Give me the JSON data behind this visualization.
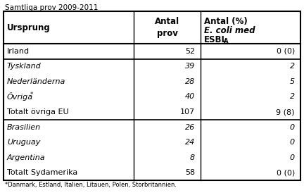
{
  "title": "Samtliga prov 2009-2011",
  "rows": [
    {
      "origin": "Irland",
      "italic": false,
      "antal_prov": "52",
      "antal_pct": "0 (0)",
      "section_bottom": true
    },
    {
      "origin": "Tyskland",
      "italic": true,
      "antal_prov": "39",
      "antal_pct": "2",
      "section_bottom": false
    },
    {
      "origin": "Nederländerna",
      "italic": true,
      "antal_prov": "28",
      "antal_pct": "5",
      "section_bottom": false
    },
    {
      "origin": "Övriga",
      "italic": true,
      "has_asterisk": true,
      "antal_prov": "40",
      "antal_pct": "2",
      "section_bottom": false
    },
    {
      "origin": "Totalt övriga EU",
      "italic": false,
      "antal_prov": "107",
      "antal_pct": "9 (8)",
      "section_bottom": true
    },
    {
      "origin": "Brasilien",
      "italic": true,
      "antal_prov": "26",
      "antal_pct": "0",
      "section_bottom": false
    },
    {
      "origin": "Uruguay",
      "italic": true,
      "antal_prov": "24",
      "antal_pct": "0",
      "section_bottom": false
    },
    {
      "origin": "Argentina",
      "italic": true,
      "antal_prov": "8",
      "antal_pct": "0",
      "section_bottom": false
    },
    {
      "origin": "Totalt Sydamerika",
      "italic": false,
      "antal_prov": "58",
      "antal_pct": "0 (0)",
      "section_bottom": true
    }
  ],
  "footnote": "*Danmark, Estland, Italien, Litauen, Polen, Storbritannien.",
  "fig_width": 4.32,
  "fig_height": 2.74,
  "dpi": 100,
  "background": "#ffffff",
  "border_color": "#000000",
  "font_size": 8.0,
  "header_font_size": 8.5
}
